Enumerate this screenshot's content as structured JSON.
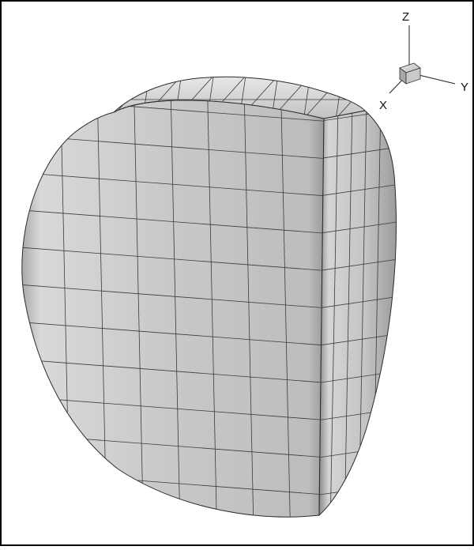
{
  "axis_triad": {
    "z_label": "Z",
    "y_label": "Y",
    "x_label": "X"
  },
  "mesh": {
    "front_grid": {
      "columns": 8,
      "rows": 11
    },
    "side_grid": {
      "columns": 5,
      "rows": 11
    },
    "top_grid": {
      "columns": 8,
      "rows": 2
    }
  },
  "colors": {
    "background": "#ffffff",
    "frame": "#000000",
    "surface_light": "#d9d9d9",
    "surface_mid": "#bdbdbd",
    "surface_dark": "#8f8f8f",
    "mesh_line": "#3a3a3a"
  }
}
